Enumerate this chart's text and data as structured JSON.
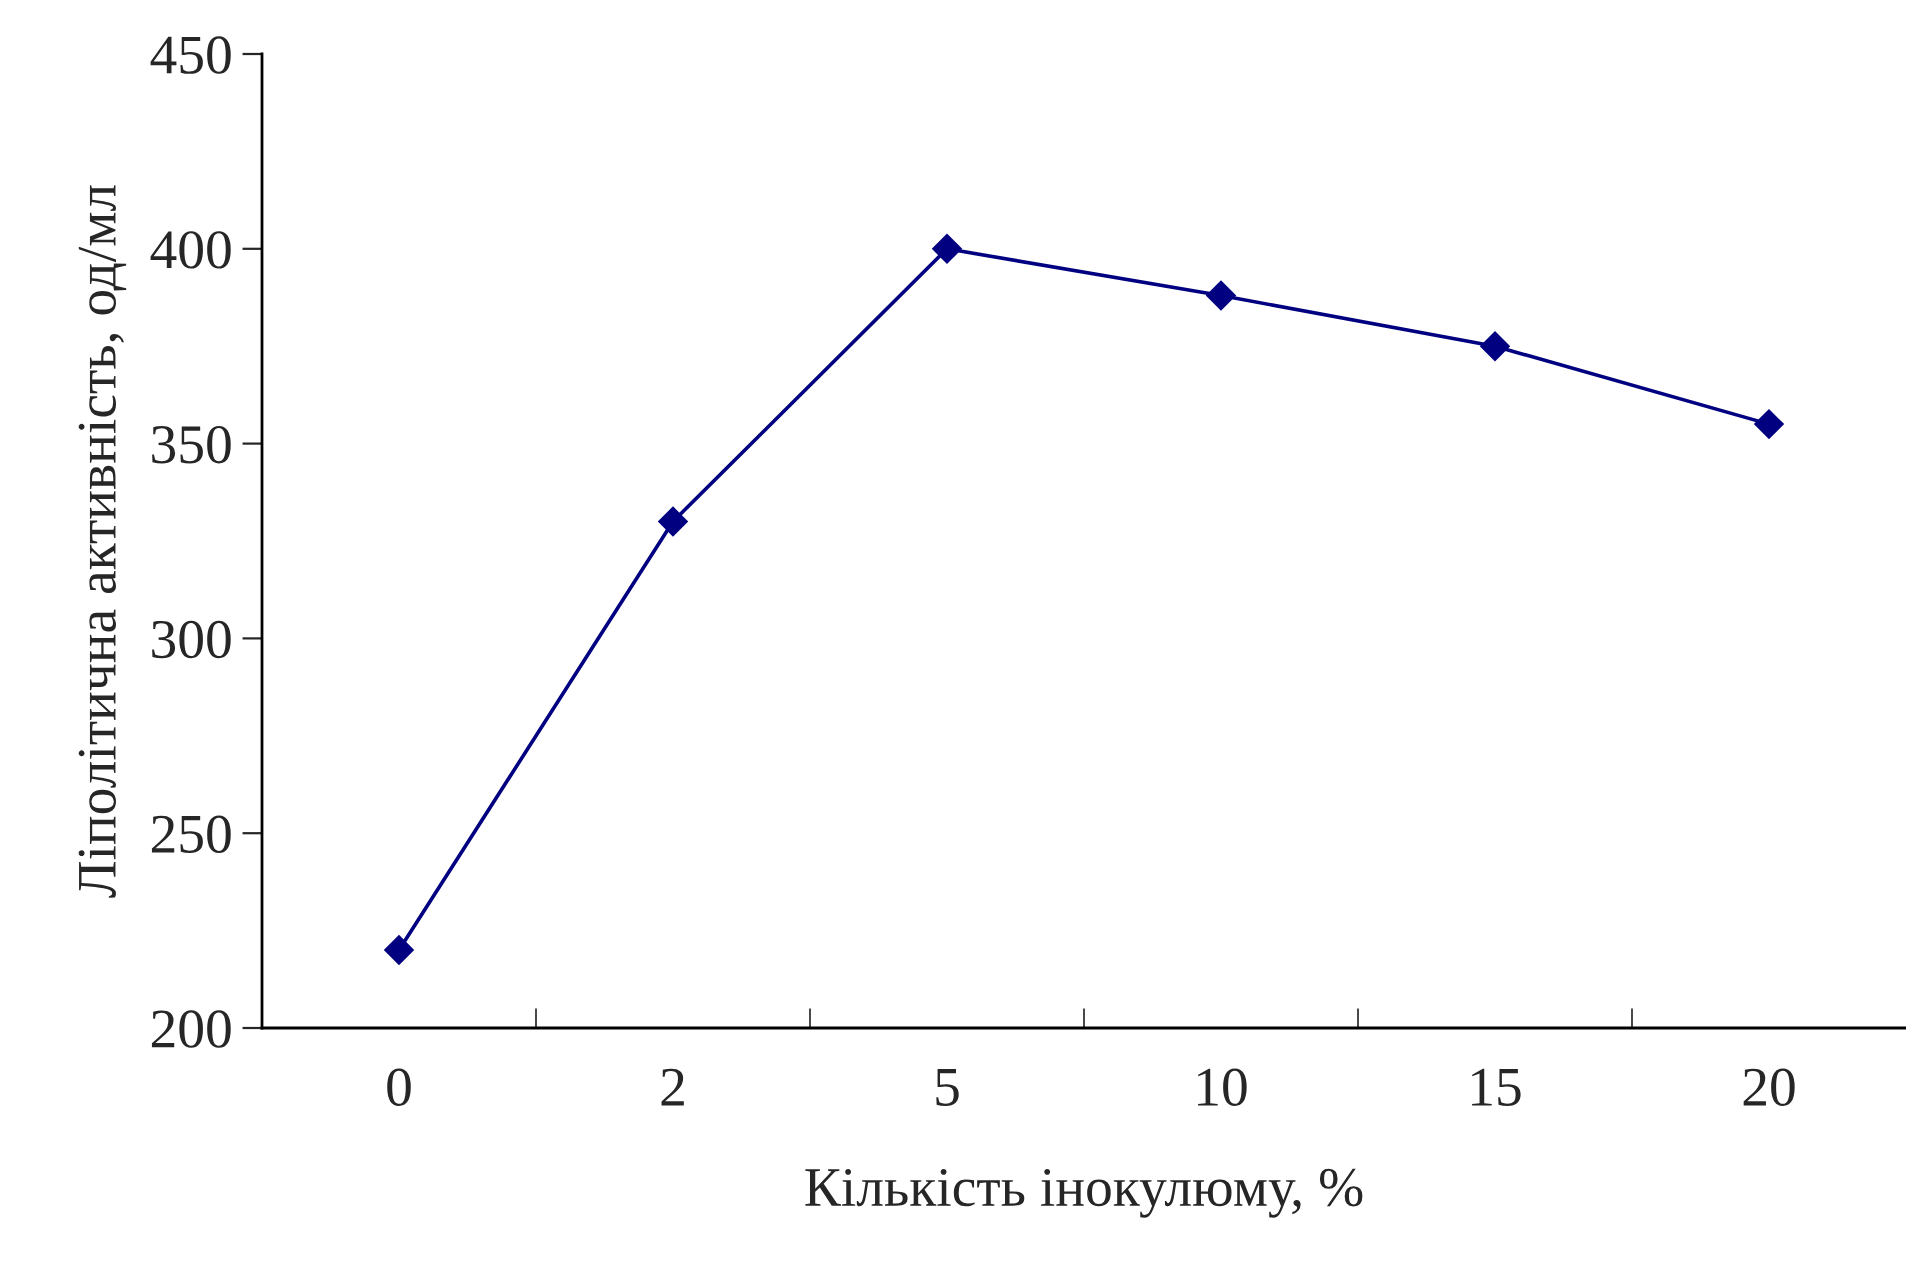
{
  "chart_data": {
    "type": "line",
    "xlabel": "Кількість інокулюму, %",
    "ylabel": "Ліполітична активність, од/мл",
    "categories": [
      "0",
      "2",
      "5",
      "10",
      "15",
      "20"
    ],
    "series": [
      {
        "color": "#000080",
        "values": [
          220,
          330,
          400,
          388,
          375,
          355
        ]
      }
    ],
    "ylim": [
      200,
      450
    ],
    "yticks": [
      200,
      250,
      300,
      350,
      400,
      450
    ],
    "grid": false,
    "legend": false,
    "marker": "diamond",
    "line_style": "solid"
  }
}
